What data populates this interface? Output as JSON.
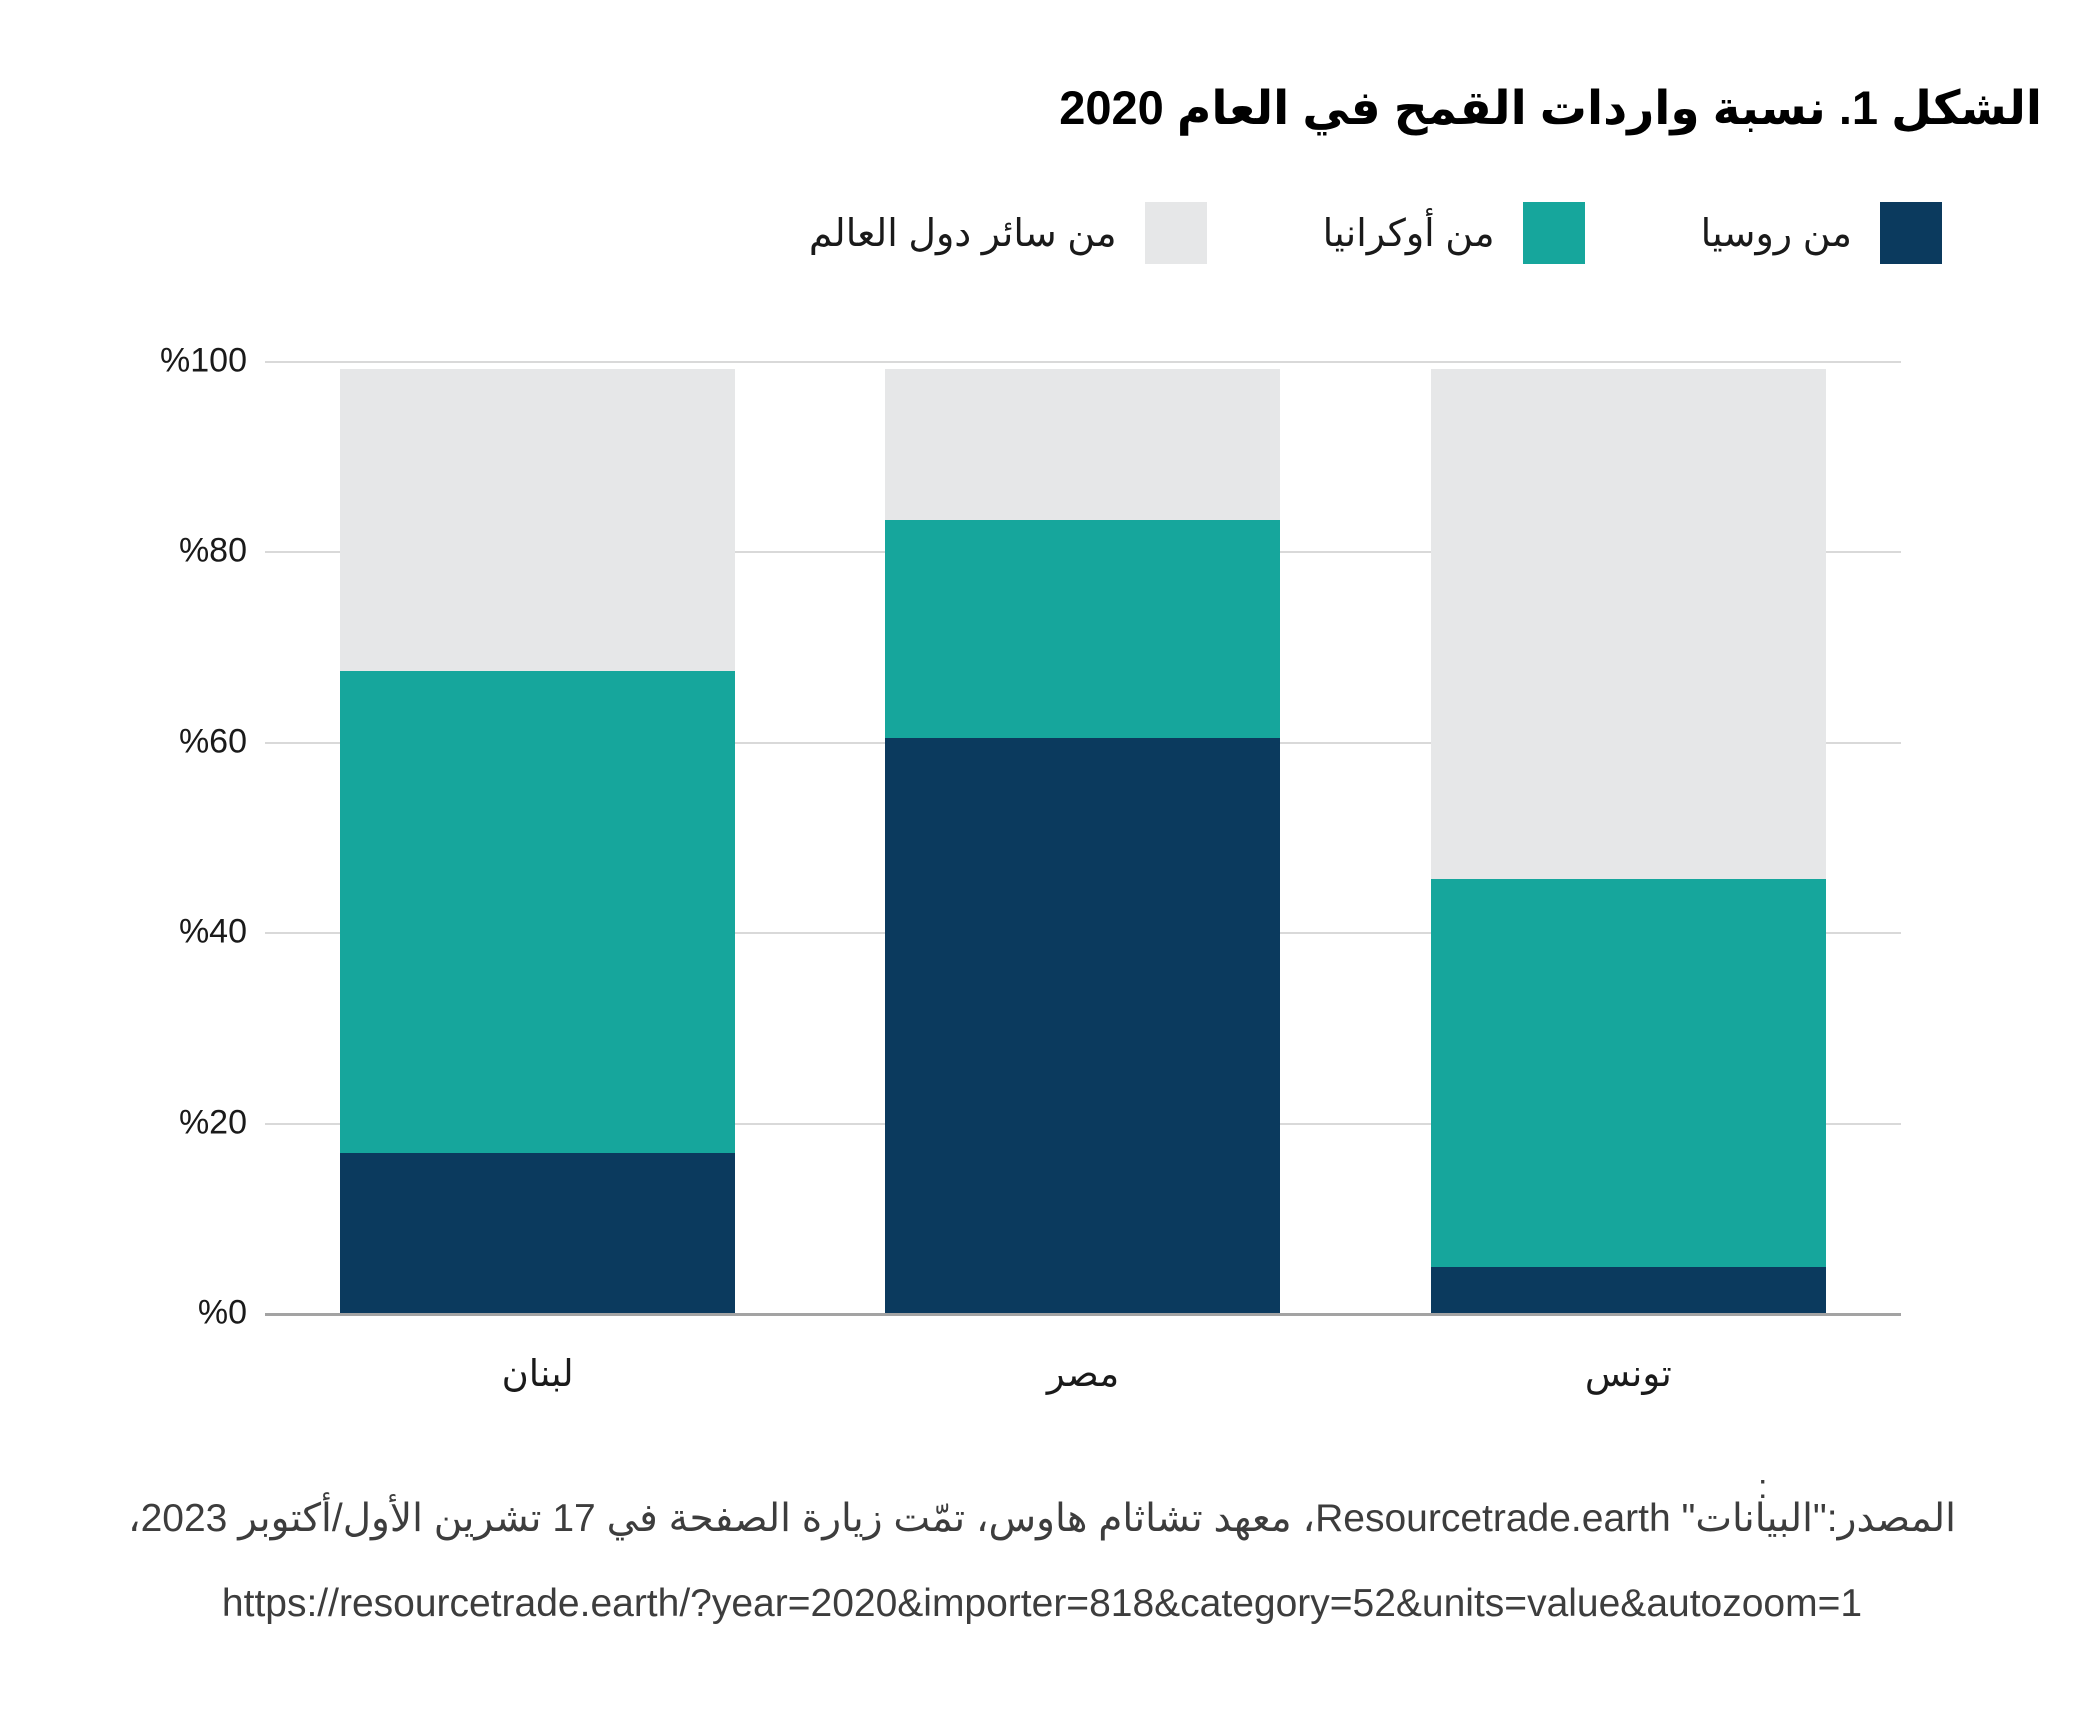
{
  "title": "الشكل 1. نسبة واردات القمح في العام 2020",
  "legend": [
    {
      "label": "من روسيا",
      "color": "#0b3a5e"
    },
    {
      "label": "من أوكرانيا",
      "color": "#16a69c"
    },
    {
      "label": "من سائر دول العالم",
      "color": "#e6e7e8"
    }
  ],
  "y_axis": {
    "ticks": [
      "%100",
      "%80",
      "%60",
      "%40",
      "%20",
      "%0"
    ],
    "tick_values": [
      100,
      80,
      60,
      40,
      20,
      0
    ]
  },
  "chart_data": {
    "type": "bar",
    "stacked": true,
    "unit": "percent",
    "title": "الشكل 1. نسبة واردات القمح في العام 2020",
    "categories": [
      "لبنان",
      "مصر",
      "تونس"
    ],
    "series": [
      {
        "name": "من روسيا",
        "color": "#0b3a5e",
        "values": [
          17,
          61,
          5
        ]
      },
      {
        "name": "من أوكرانيا",
        "color": "#16a69c",
        "values": [
          51,
          23,
          41
        ]
      },
      {
        "name": "من سائر دول العالم",
        "color": "#e6e7e8",
        "values": [
          32,
          16,
          54
        ]
      }
    ],
    "ylim": [
      0,
      100
    ],
    "grid": true,
    "legend_position": "top-right",
    "colors": {
      "gridline": "#d9d9d9",
      "axis_line": "#a3a3a3",
      "text": "#1a1a1a"
    }
  },
  "source": {
    "colon": ":",
    "line1": "المصدر:\"البيانات\" Resourcetrade.earth، معهد تشاثام هاوس، تمّت زيارة الصفحة في 17 تشرين الأول/أكتوبر 2023،",
    "line2": "https://resourcetrade.earth/?year=2020&importer=818&category=52&units=value&autozoom=1"
  }
}
